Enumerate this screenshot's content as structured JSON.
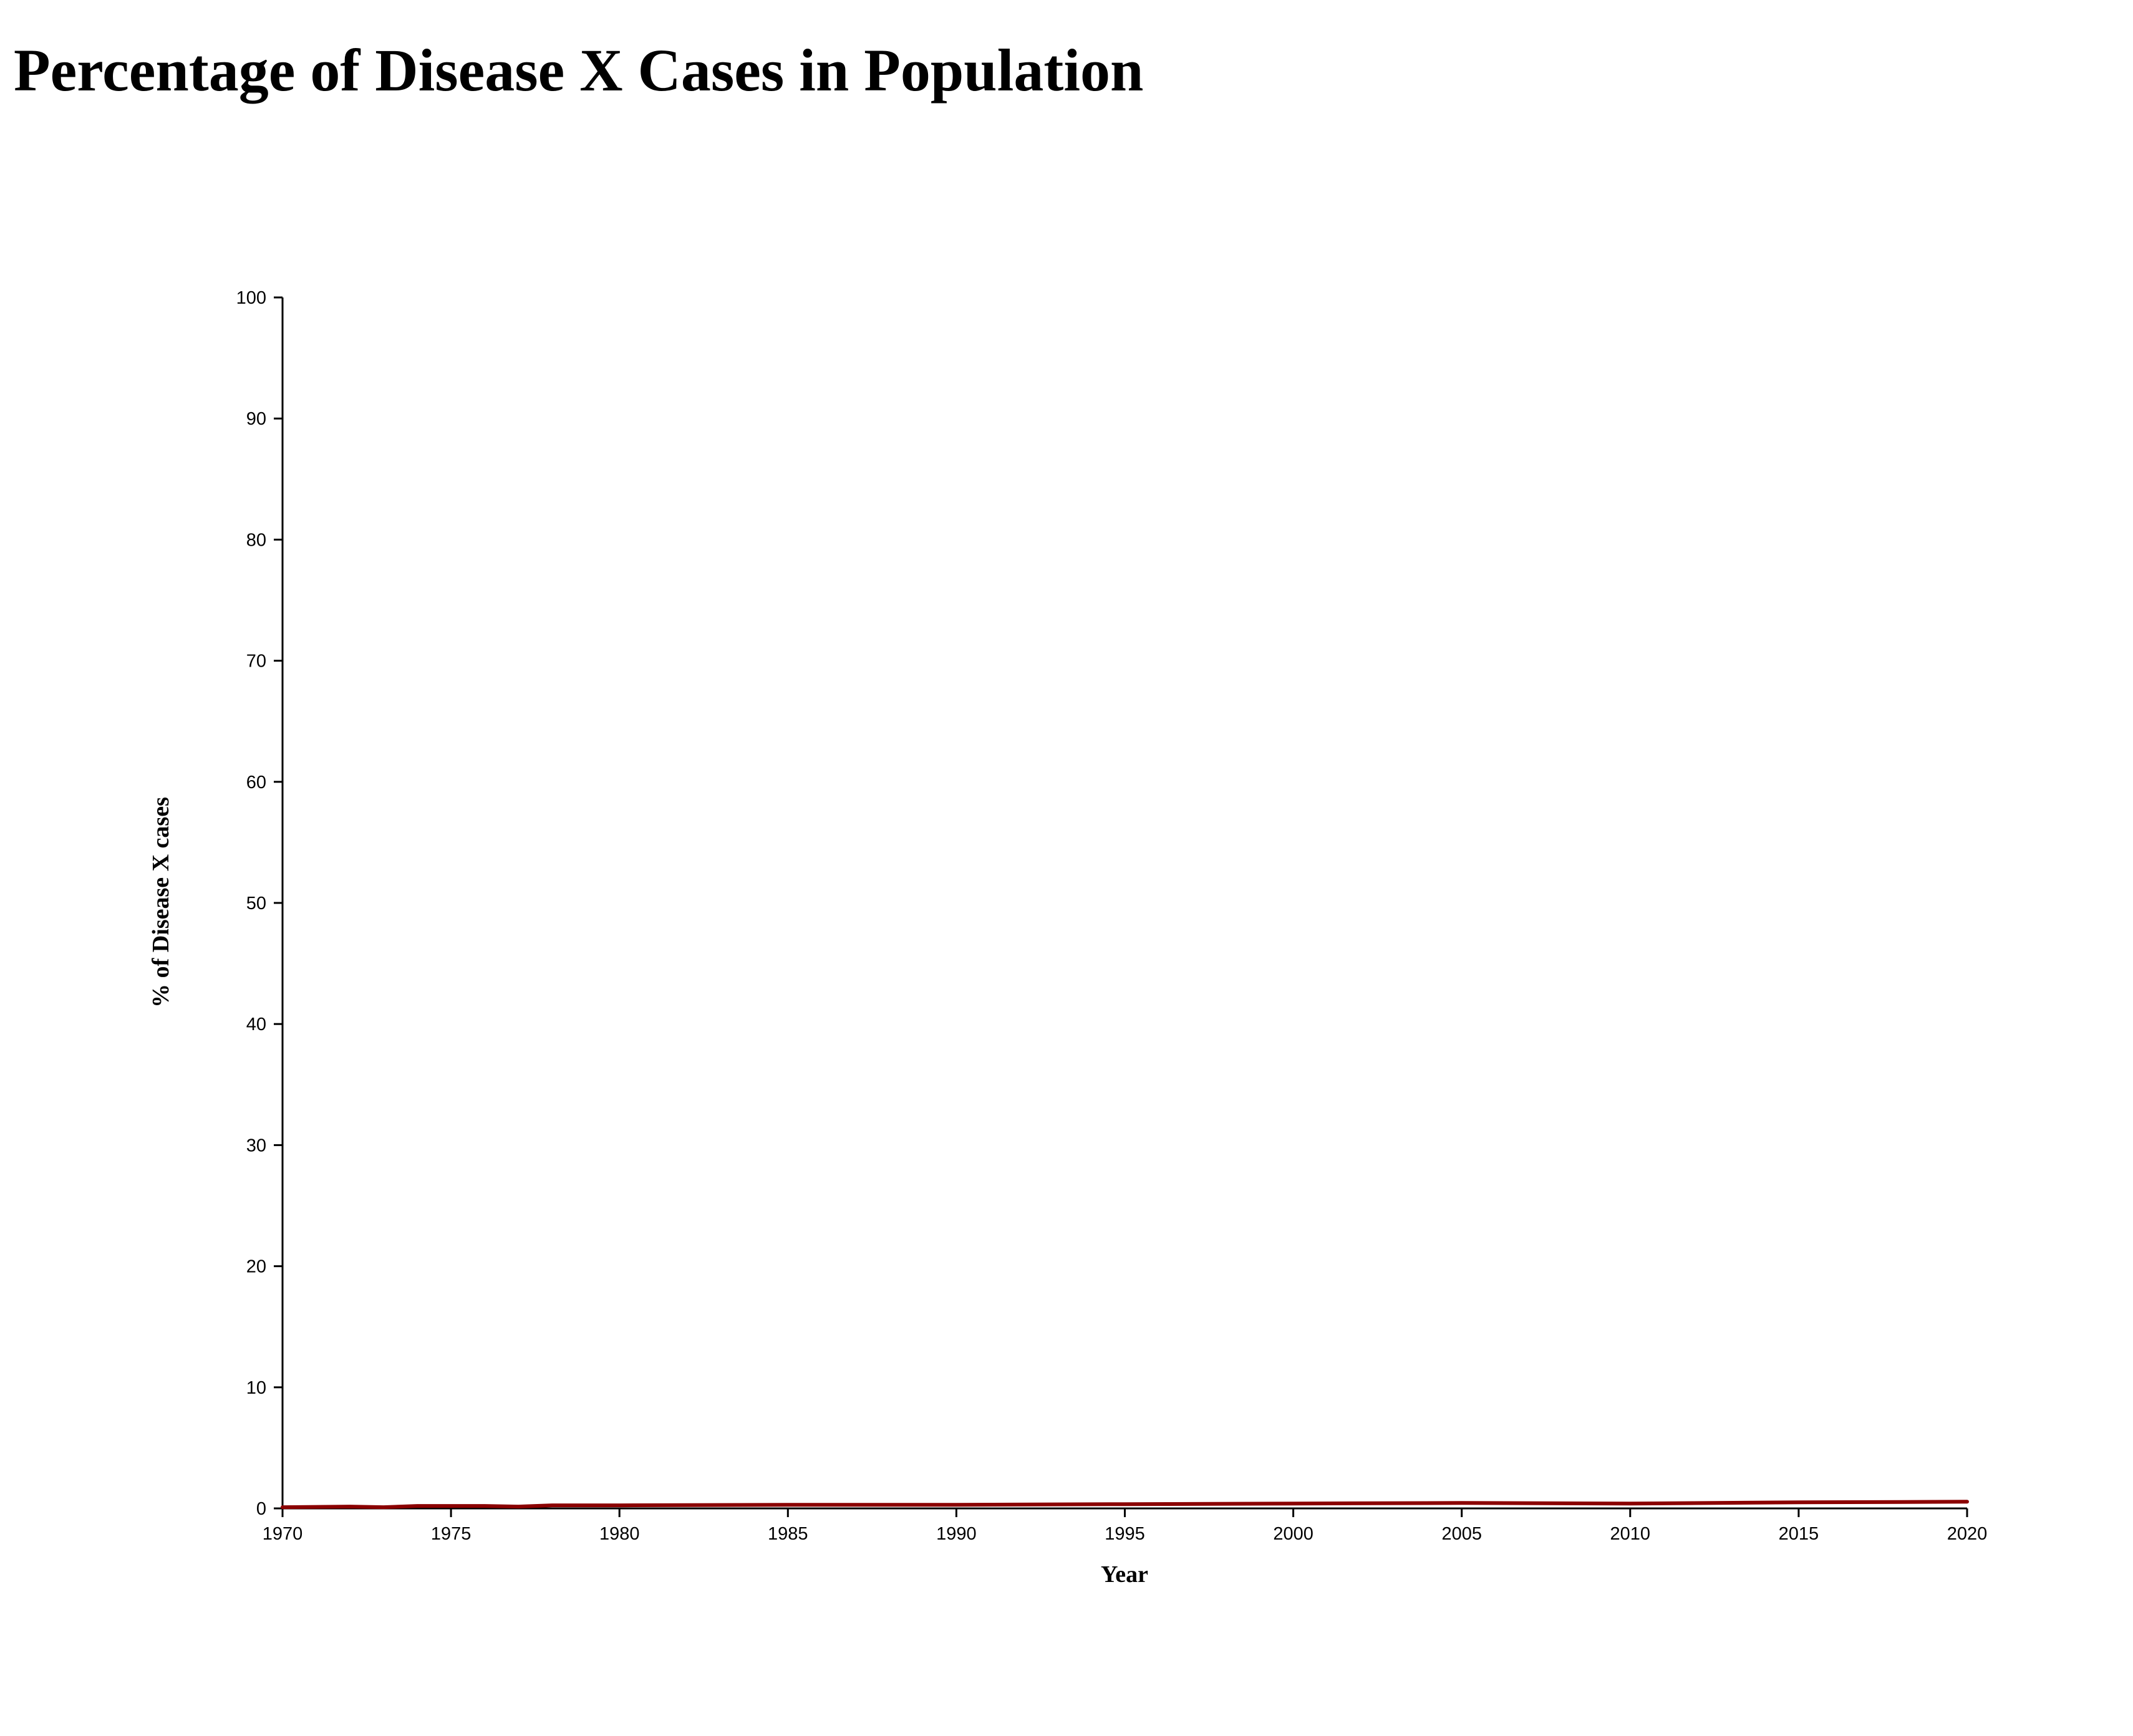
{
  "title": "Percentage of Disease X Cases in Population",
  "chart_data": {
    "type": "line",
    "title": "Percentage of Disease X Cases in Population",
    "xlabel": "Year",
    "ylabel": "% of Disease X cases",
    "xlim": [
      1970,
      2020
    ],
    "ylim": [
      0,
      100
    ],
    "x_ticks": [
      "1970",
      "1975",
      "1980",
      "1985",
      "1990",
      "1995",
      "2000",
      "2005",
      "2010",
      "2015",
      "2020"
    ],
    "y_ticks": [
      "0",
      "10",
      "20",
      "30",
      "40",
      "50",
      "60",
      "70",
      "80",
      "90",
      "100"
    ],
    "grid": false,
    "line_color": "#8b0000",
    "series": [
      {
        "x": [
          1970,
          1972,
          1973,
          1974,
          1976,
          1977,
          1978,
          1980,
          1985,
          1990,
          1995,
          2000,
          2005,
          2010,
          2015,
          2020
        ],
        "y": [
          0.1,
          0.15,
          0.1,
          0.2,
          0.2,
          0.15,
          0.25,
          0.25,
          0.3,
          0.3,
          0.35,
          0.4,
          0.45,
          0.4,
          0.5,
          0.55
        ]
      }
    ]
  }
}
